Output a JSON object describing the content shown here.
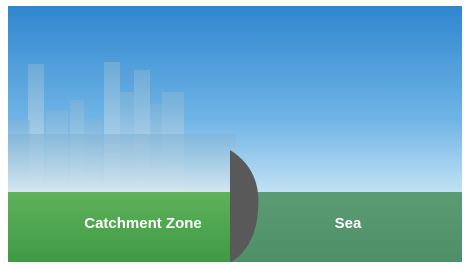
{
  "labels": {
    "left": "Catchment Zone",
    "right": "Sea"
  }
}
